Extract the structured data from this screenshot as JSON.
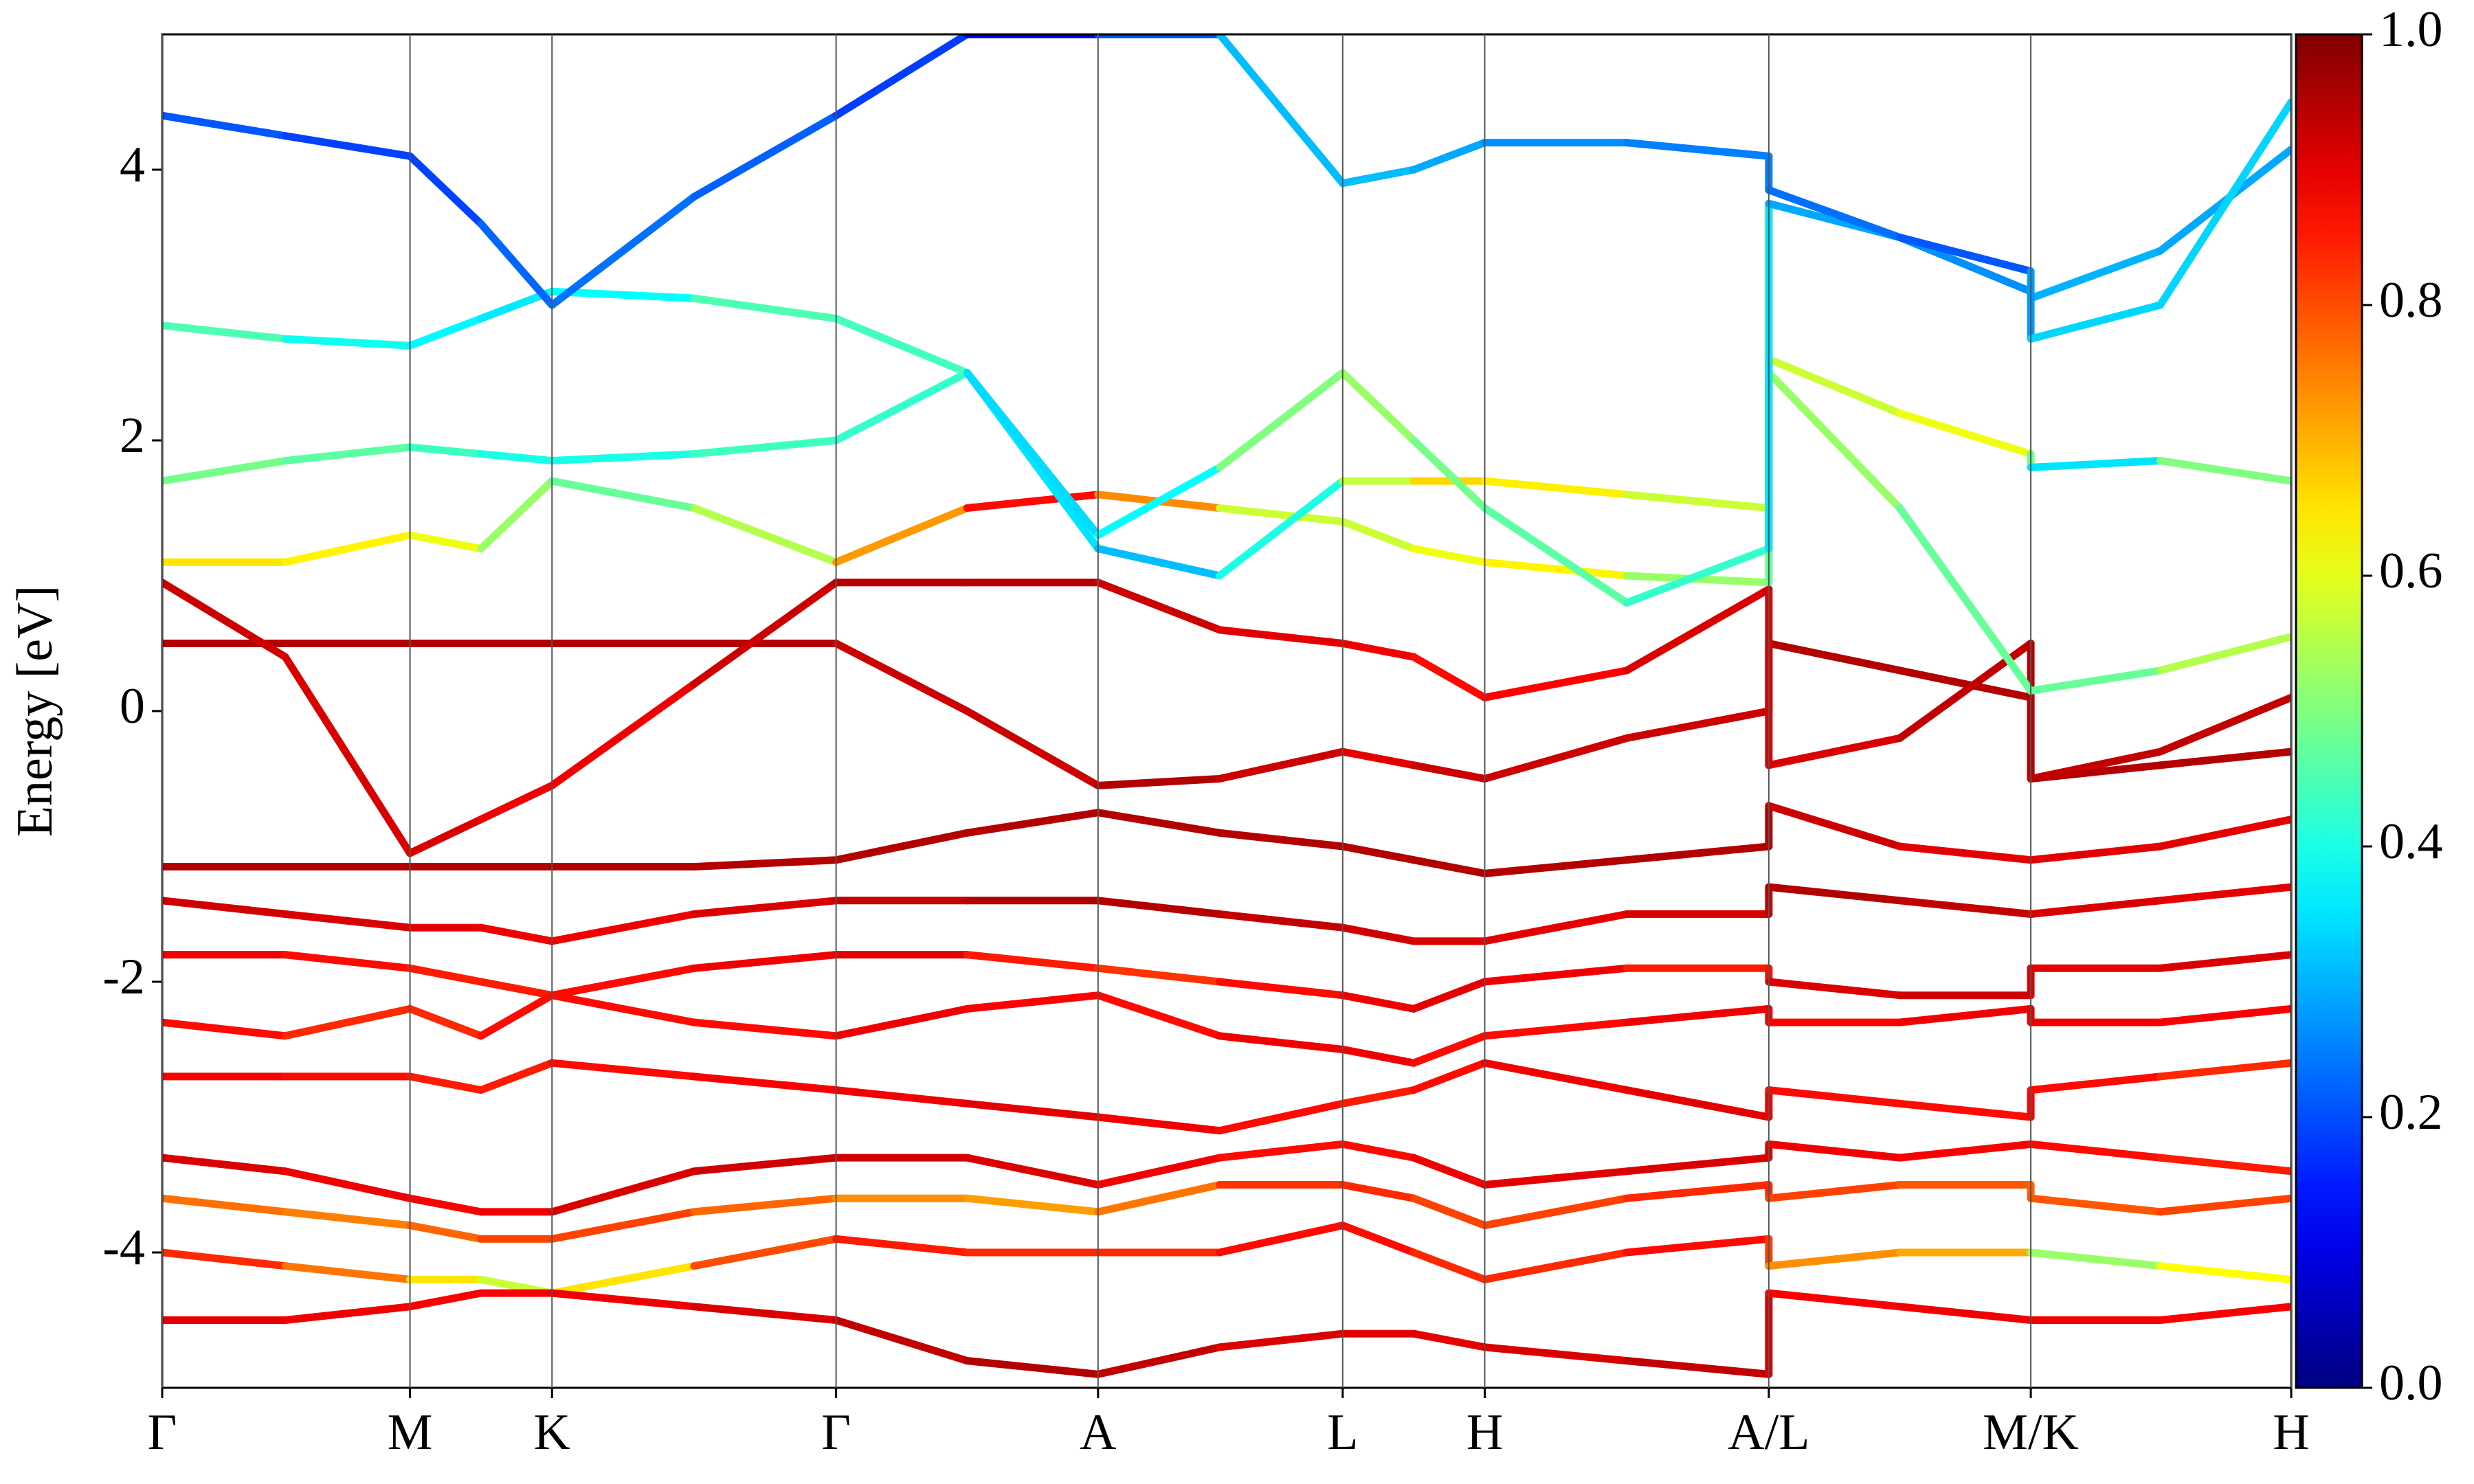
{
  "chart_data": {
    "type": "line",
    "ylabel": "Energy [eV]",
    "x": [
      0,
      0.078,
      0.157,
      0.202,
      0.247,
      0.337,
      0.427,
      0.51,
      0.593,
      0.67,
      0.748,
      0.793,
      0.838,
      0.928,
      1.018,
      1.018,
      1.101,
      1.184,
      1.184,
      1.266,
      1.349
    ],
    "xlim": [
      0,
      1.349
    ],
    "xticks": [
      {
        "value": 0,
        "label": "Γ"
      },
      {
        "value": 0.157,
        "label": "M"
      },
      {
        "value": 0.247,
        "label": "K"
      },
      {
        "value": 0.427,
        "label": "Γ"
      },
      {
        "value": 0.593,
        "label": "A"
      },
      {
        "value": 0.748,
        "label": "L"
      },
      {
        "value": 0.838,
        "label": "H"
      },
      {
        "value": 1.018,
        "label": "A/L"
      },
      {
        "value": 1.184,
        "label": "M/K"
      },
      {
        "value": 1.349,
        "label": "H"
      }
    ],
    "ylim": [
      -5,
      5
    ],
    "yticks": [
      -4,
      -2,
      0,
      2,
      4
    ],
    "colorbar": {
      "colormap": "jet",
      "lim": [
        0,
        1
      ],
      "ticks": [
        {
          "value": 0,
          "label": "0.0"
        },
        {
          "value": 0.2,
          "label": "0.2"
        },
        {
          "value": 0.4,
          "label": "0.4"
        },
        {
          "value": 0.6,
          "label": "0.6"
        },
        {
          "value": 0.8,
          "label": "0.8"
        },
        {
          "value": 1,
          "label": "1.0"
        }
      ]
    },
    "series": [
      {
        "values": [
          0.5,
          0.5,
          0.5,
          0.5,
          0.5,
          0.5,
          0.5,
          0.0,
          -0.55,
          -0.5,
          -0.3,
          -0.4,
          -0.5,
          -0.2,
          0.0,
          0.5,
          0.3,
          0.1,
          -0.5,
          -0.4,
          -0.3
        ],
        "weights": [
          0.95,
          0.95,
          0.95,
          0.95,
          0.95,
          0.95,
          0.95,
          0.9,
          0.95,
          0.95,
          0.9,
          0.9,
          0.95,
          0.9,
          0.95,
          0.95,
          0.95,
          0.95,
          0.95,
          0.95,
          0.95
        ]
      },
      {
        "values": [
          0.95,
          0.4,
          -1.05,
          -0.8,
          -0.55,
          0.2,
          0.95,
          0.95,
          0.95,
          0.6,
          0.5,
          0.4,
          0.1,
          0.3,
          0.9,
          -0.4,
          -0.2,
          0.5,
          -0.5,
          -0.3,
          0.1
        ],
        "weights": [
          0.95,
          0.9,
          0.92,
          0.9,
          0.88,
          0.9,
          0.95,
          0.95,
          0.95,
          0.9,
          0.9,
          0.88,
          0.85,
          0.9,
          0.92,
          0.9,
          0.92,
          0.95,
          0.95,
          0.92,
          0.95
        ]
      },
      {
        "values": [
          -1.15,
          -1.15,
          -1.15,
          -1.15,
          -1.15,
          -1.15,
          -1.1,
          -0.9,
          -0.75,
          -0.9,
          -1.0,
          -1.1,
          -1.2,
          -1.1,
          -1.0,
          -0.7,
          -1.0,
          -1.1,
          -1.1,
          -1.0,
          -0.8
        ],
        "weights": [
          0.95,
          0.95,
          0.95,
          0.95,
          0.95,
          0.95,
          0.95,
          0.95,
          0.95,
          0.95,
          0.95,
          0.95,
          0.95,
          0.95,
          0.95,
          0.95,
          0.9,
          0.9,
          0.9,
          0.9,
          0.9
        ]
      },
      {
        "values": [
          -1.4,
          -1.5,
          -1.6,
          -1.6,
          -1.7,
          -1.5,
          -1.4,
          -1.4,
          -1.4,
          -1.5,
          -1.6,
          -1.7,
          -1.7,
          -1.5,
          -1.5,
          -1.3,
          -1.4,
          -1.5,
          -1.5,
          -1.4,
          -1.3
        ],
        "weights": [
          0.92,
          0.92,
          0.9,
          0.9,
          0.88,
          0.9,
          0.92,
          0.95,
          0.95,
          0.95,
          0.92,
          0.92,
          0.9,
          0.9,
          0.92,
          0.95,
          0.95,
          0.92,
          0.92,
          0.9,
          0.9
        ]
      },
      {
        "values": [
          -1.8,
          -1.8,
          -1.9,
          -2.0,
          -2.1,
          -1.9,
          -1.8,
          -1.8,
          -1.9,
          -2.0,
          -2.1,
          -2.2,
          -2.0,
          -1.9,
          -1.9,
          -2.0,
          -2.1,
          -2.1,
          -1.9,
          -1.9,
          -1.8
        ],
        "weights": [
          0.9,
          0.88,
          0.85,
          0.85,
          0.85,
          0.88,
          0.9,
          0.9,
          0.8,
          0.85,
          0.88,
          0.9,
          0.9,
          0.88,
          0.82,
          0.9,
          0.92,
          0.92,
          0.9,
          0.9,
          0.92
        ]
      },
      {
        "values": [
          -2.3,
          -2.4,
          -2.2,
          -2.4,
          -2.1,
          -2.3,
          -2.4,
          -2.2,
          -2.1,
          -2.4,
          -2.5,
          -2.6,
          -2.4,
          -2.3,
          -2.2,
          -2.3,
          -2.3,
          -2.2,
          -2.3,
          -2.3,
          -2.2
        ],
        "weights": [
          0.88,
          0.85,
          0.82,
          0.85,
          0.88,
          0.85,
          0.88,
          0.9,
          0.85,
          0.88,
          0.9,
          0.88,
          0.85,
          0.88,
          0.9,
          0.88,
          0.88,
          0.9,
          0.9,
          0.88,
          0.88
        ]
      },
      {
        "values": [
          -2.7,
          -2.7,
          -2.7,
          -2.8,
          -2.6,
          -2.7,
          -2.8,
          -2.9,
          -3.0,
          -3.1,
          -2.9,
          -2.8,
          -2.6,
          -2.8,
          -3.0,
          -2.8,
          -2.9,
          -3.0,
          -2.8,
          -2.7,
          -2.6
        ],
        "weights": [
          0.88,
          0.88,
          0.85,
          0.85,
          0.85,
          0.88,
          0.88,
          0.9,
          0.9,
          0.88,
          0.85,
          0.85,
          0.88,
          0.9,
          0.9,
          0.88,
          0.85,
          0.88,
          0.88,
          0.85,
          0.82
        ]
      },
      {
        "values": [
          -3.3,
          -3.4,
          -3.6,
          -3.7,
          -3.7,
          -3.4,
          -3.3,
          -3.3,
          -3.5,
          -3.3,
          -3.2,
          -3.3,
          -3.5,
          -3.4,
          -3.3,
          -3.2,
          -3.3,
          -3.2,
          -3.2,
          -3.3,
          -3.4
        ],
        "weights": [
          0.92,
          0.9,
          0.88,
          0.88,
          0.9,
          0.92,
          0.92,
          0.92,
          0.9,
          0.88,
          0.85,
          0.88,
          0.9,
          0.9,
          0.92,
          0.9,
          0.88,
          0.88,
          0.88,
          0.85,
          0.85
        ]
      },
      {
        "values": [
          -3.6,
          -3.7,
          -3.8,
          -3.9,
          -3.9,
          -3.7,
          -3.6,
          -3.6,
          -3.7,
          -3.5,
          -3.5,
          -3.6,
          -3.8,
          -3.6,
          -3.5,
          -3.6,
          -3.5,
          -3.5,
          -3.6,
          -3.7,
          -3.6
        ],
        "weights": [
          0.78,
          0.75,
          0.75,
          0.8,
          0.82,
          0.8,
          0.75,
          0.72,
          0.72,
          0.8,
          0.85,
          0.82,
          0.8,
          0.82,
          0.85,
          0.82,
          0.8,
          0.78,
          0.78,
          0.8,
          0.82
        ]
      },
      {
        "values": [
          -4.0,
          -4.1,
          -4.2,
          -4.2,
          -4.3,
          -4.1,
          -3.9,
          -4.0,
          -4.0,
          -4.0,
          -3.8,
          -4.0,
          -4.2,
          -4.0,
          -3.9,
          -4.1,
          -4.0,
          -4.0,
          -4.0,
          -4.1,
          -4.2
        ],
        "weights": [
          0.85,
          0.82,
          0.7,
          0.6,
          0.55,
          0.75,
          0.85,
          0.85,
          0.82,
          0.85,
          0.88,
          0.85,
          0.82,
          0.85,
          0.88,
          0.75,
          0.72,
          0.7,
          0.5,
          0.55,
          0.7
        ]
      },
      {
        "values": [
          -4.5,
          -4.5,
          -4.4,
          -4.3,
          -4.3,
          -4.4,
          -4.5,
          -4.8,
          -4.9,
          -4.7,
          -4.6,
          -4.6,
          -4.7,
          -4.8,
          -4.9,
          -4.3,
          -4.4,
          -4.5,
          -4.5,
          -4.5,
          -4.4
        ],
        "weights": [
          0.9,
          0.9,
          0.88,
          0.88,
          0.88,
          0.9,
          0.92,
          0.95,
          0.95,
          0.92,
          0.9,
          0.9,
          0.9,
          0.92,
          0.95,
          0.88,
          0.88,
          0.9,
          0.9,
          0.88,
          0.88
        ]
      },
      {
        "values": [
          1.1,
          1.1,
          1.3,
          1.2,
          1.7,
          1.5,
          1.1,
          1.5,
          1.6,
          1.5,
          1.4,
          1.2,
          1.1,
          1.0,
          0.95,
          2.5,
          1.5,
          0.15,
          0.15,
          0.3,
          0.55
        ],
        "weights": [
          0.65,
          0.65,
          0.62,
          0.6,
          0.45,
          0.5,
          0.6,
          0.85,
          0.88,
          0.6,
          0.55,
          0.6,
          0.62,
          0.65,
          0.4,
          0.55,
          0.5,
          0.45,
          0.45,
          0.5,
          0.6
        ]
      },
      {
        "values": [
          1.7,
          1.85,
          1.95,
          1.9,
          1.85,
          1.9,
          2.0,
          2.5,
          1.2,
          1.0,
          1.7,
          1.7,
          1.7,
          1.6,
          1.5,
          2.6,
          2.2,
          1.9,
          1.8,
          1.85,
          1.7
        ],
        "weights": [
          0.5,
          0.48,
          0.45,
          0.42,
          0.38,
          0.42,
          0.45,
          0.4,
          0.3,
          0.32,
          0.48,
          0.65,
          0.68,
          0.6,
          0.55,
          0.55,
          0.6,
          0.62,
          0.35,
          0.35,
          0.65
        ]
      },
      {
        "values": [
          2.85,
          2.75,
          2.7,
          2.9,
          3.1,
          3.05,
          2.9,
          2.5,
          1.3,
          1.8,
          2.5,
          2.0,
          1.5,
          0.8,
          1.2,
          3.75,
          3.5,
          3.1,
          3.05,
          3.4,
          4.15
        ],
        "weights": [
          0.5,
          0.4,
          0.38,
          0.36,
          0.35,
          0.4,
          0.5,
          0.38,
          0.3,
          0.45,
          0.55,
          0.5,
          0.48,
          0.45,
          0.4,
          0.3,
          0.28,
          0.25,
          0.3,
          0.3,
          0.28
        ]
      },
      {
        "values": [
          4.4,
          4.25,
          4.1,
          3.6,
          3.0,
          3.8,
          4.4,
          5.0,
          5.0,
          5.0,
          3.9,
          4.0,
          4.2,
          4.2,
          4.1,
          3.85,
          3.5,
          3.25,
          2.75,
          3.0,
          4.5
        ],
        "weights": [
          0.22,
          0.2,
          0.18,
          0.2,
          0.25,
          0.22,
          0.22,
          0.15,
          0.1,
          0.3,
          0.32,
          0.3,
          0.28,
          0.25,
          0.25,
          0.25,
          0.22,
          0.2,
          0.35,
          0.32,
          0.35
        ]
      }
    ]
  }
}
